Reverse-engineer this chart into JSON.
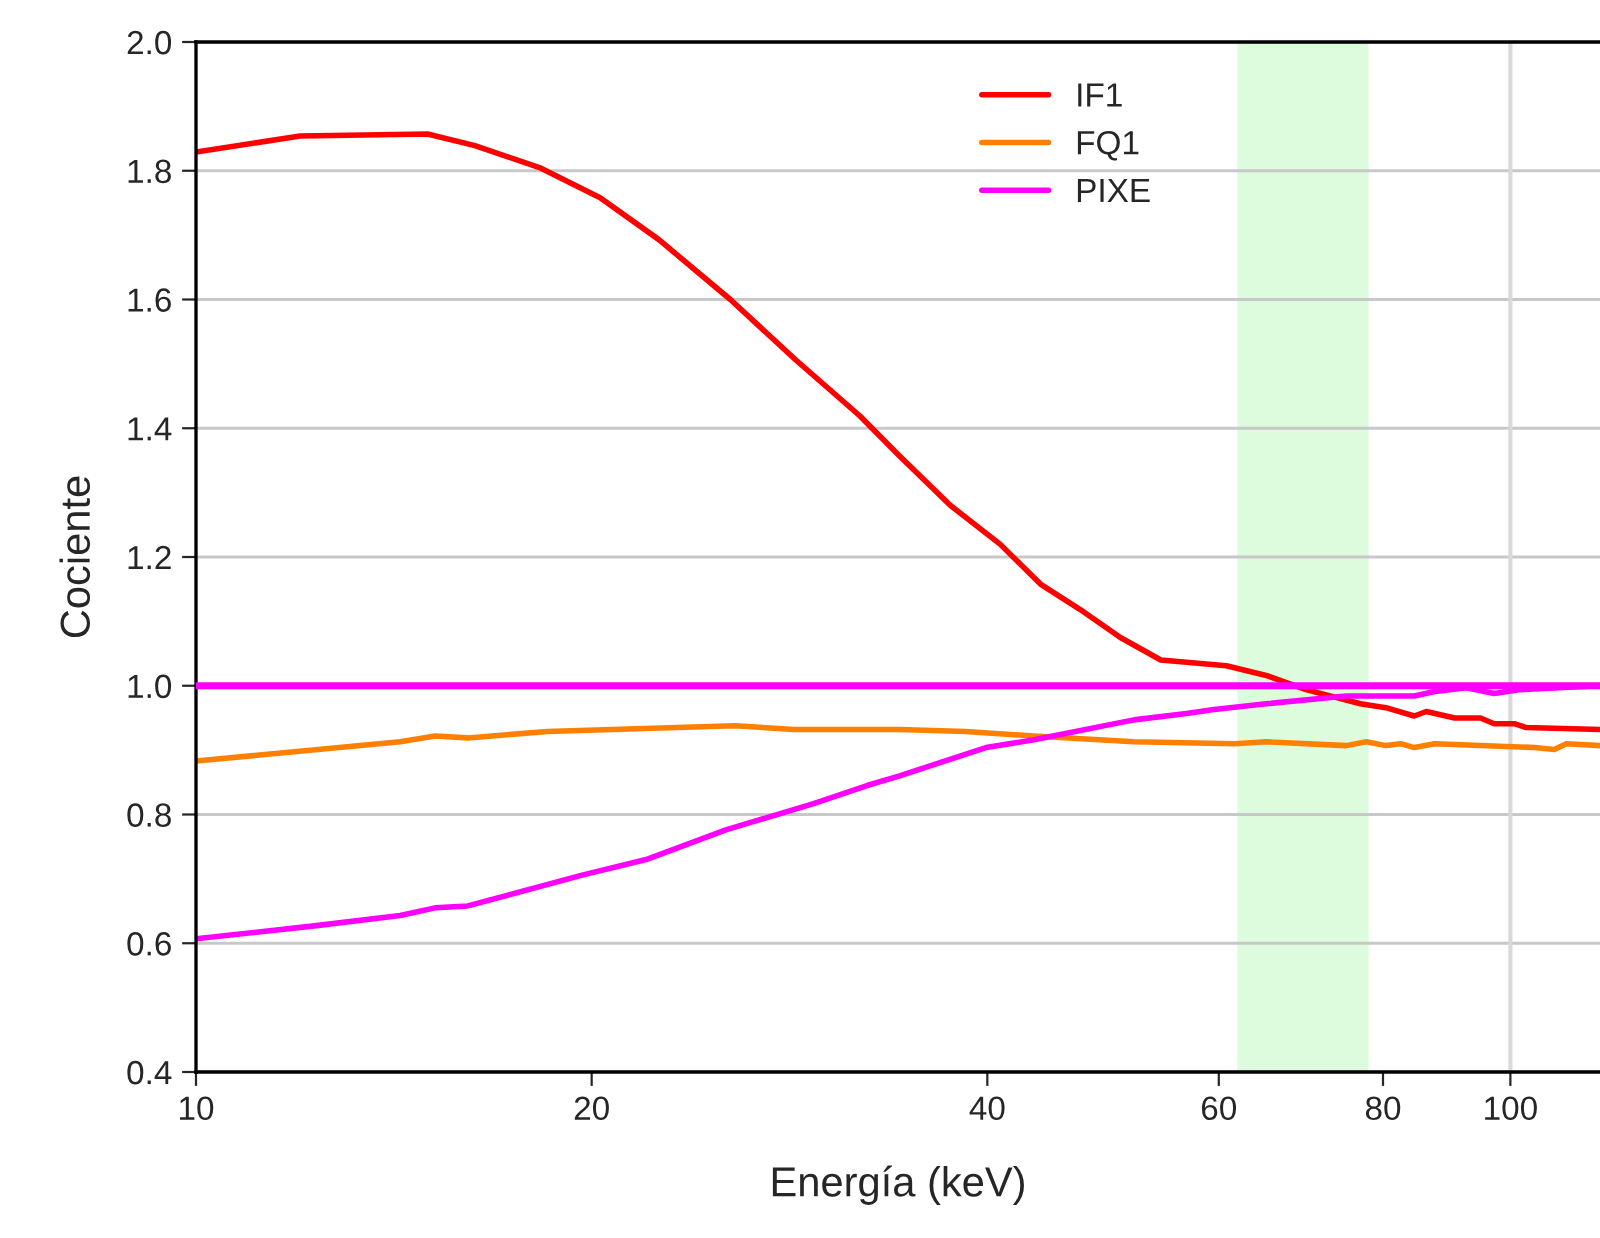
{
  "chart_data": {
    "type": "line",
    "xlabel": "Energía (keV)",
    "ylabel": "Cociente",
    "log": "x",
    "xlim": [
      10,
      117
    ],
    "xticks": [
      10,
      20,
      40,
      60,
      80,
      100
    ],
    "ylim": [
      0.4,
      2.0
    ],
    "yticks": [
      0.4,
      0.6,
      0.8,
      {
        "value": 1.0,
        "label": "1.0"
      },
      1.2,
      1.4,
      1.6,
      1.8,
      {
        "value": 2.0,
        "label": "2.0"
      }
    ],
    "grid": "y",
    "legend": "top",
    "line_style": "solid",
    "marker": "none",
    "ref_lines": [
      {
        "axis": "y",
        "value": 1.0,
        "label": null,
        "color": "#ff00ff"
      },
      {
        "axis": "x",
        "value": 100,
        "label": null,
        "color": "#d9d9d9"
      }
    ],
    "bands": [
      {
        "axis": "x",
        "from": 62,
        "to": 78,
        "label": null,
        "color": "#ddfcdd"
      }
    ],
    "series": [
      {
        "name": "IF1",
        "color": "#ff0000",
        "x": [
          10,
          12.0,
          15.0,
          16.3,
          18.3,
          20.3,
          22.5,
          25.5,
          28.6,
          32.0,
          34.3,
          37.5,
          40.9,
          43.9,
          47.1,
          50.5,
          54.2,
          60.8,
          65.2,
          69.9,
          76.9,
          80.4,
          84.5,
          86.3,
          90.7,
          94.9,
          97.2,
          100.7,
          102.8,
          117
        ],
        "values": [
          1.829,
          1.854,
          1.857,
          1.839,
          1.804,
          1.758,
          1.693,
          1.6,
          1.506,
          1.419,
          1.357,
          1.28,
          1.22,
          1.158,
          1.118,
          1.075,
          1.04,
          1.031,
          1.016,
          0.994,
          0.972,
          0.966,
          0.953,
          0.96,
          0.95,
          0.95,
          0.941,
          0.941,
          0.935,
          0.932
        ]
      },
      {
        "name": "FQ1",
        "color": "#ff8000",
        "x": [
          10,
          14.3,
          15.2,
          16.1,
          18.5,
          25.7,
          28.5,
          34.3,
          38.5,
          43.4,
          51.7,
          61.7,
          65.2,
          75.0,
          77.7,
          80.4,
          82.5,
          84.5,
          87.6,
          104.3,
          108.0,
          110.3,
          117
        ],
        "values": [
          0.883,
          0.913,
          0.922,
          0.919,
          0.929,
          0.938,
          0.932,
          0.932,
          0.929,
          0.922,
          0.913,
          0.91,
          0.913,
          0.907,
          0.913,
          0.907,
          0.91,
          0.904,
          0.91,
          0.904,
          0.901,
          0.91,
          0.907
        ]
      },
      {
        "name": "PIXE",
        "color": "#ff00ff",
        "x": [
          10,
          12.3,
          14.3,
          15.2,
          16.1,
          19.6,
          22.0,
          25.3,
          29.5,
          32.4,
          34.3,
          39.9,
          43.4,
          51.7,
          56.7,
          59.5,
          65.2,
          75.0,
          84.5,
          87.6,
          92.6,
          97.2,
          101.8,
          117
        ],
        "values": [
          0.607,
          0.627,
          0.643,
          0.655,
          0.658,
          0.705,
          0.73,
          0.776,
          0.817,
          0.845,
          0.86,
          0.904,
          0.916,
          0.947,
          0.957,
          0.963,
          0.972,
          0.984,
          0.984,
          0.991,
          0.997,
          0.988,
          0.994,
          1.0
        ]
      }
    ]
  }
}
